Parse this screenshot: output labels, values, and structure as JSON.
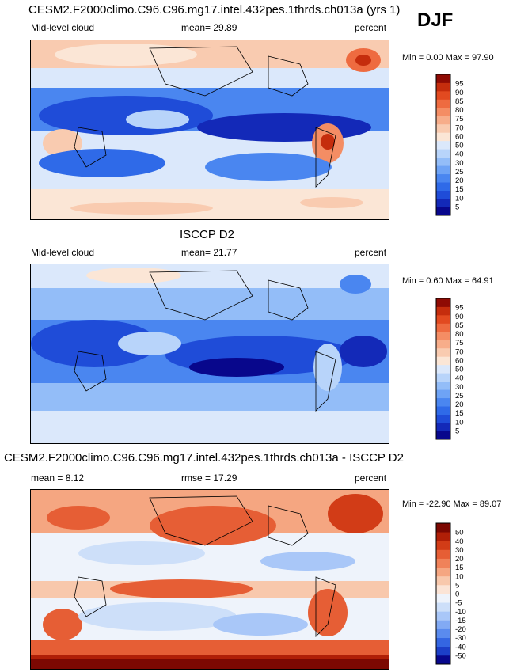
{
  "season": "DJF",
  "colors": {
    "seq": [
      "#08078c",
      "#1329b8",
      "#1f4cd8",
      "#2f6ae8",
      "#4a86f0",
      "#6ea3f5",
      "#93bdf8",
      "#b8d4fa",
      "#dbe8fb",
      "#fbe6d6",
      "#f9cbb0",
      "#f7ad8a",
      "#f48d64",
      "#ee6b40",
      "#e24a20",
      "#c52d0d",
      "#8f0b04"
    ],
    "diff": [
      "#08078c",
      "#1c3fc8",
      "#3466e2",
      "#5a8bee",
      "#82aaf4",
      "#a9c7f8",
      "#cddff9",
      "#eef3fb",
      "#fbe4d6",
      "#f8c8ac",
      "#f5a681",
      "#f08259",
      "#e65e35",
      "#d23c17",
      "#b01f07",
      "#7c0802"
    ]
  },
  "panels": [
    {
      "title": "CESM2.F2000climo.C96.C96.mg17.intel.432pes.1thrds.ch013a (yrs 1)",
      "left_label": "Mid-level cloud",
      "mean_text": "mean=  29.89",
      "right_label": "percent",
      "minmax": "Min =   0.00 Max =  97.90",
      "chart_data": {
        "type": "heatmap",
        "title": "CESM2.F2000climo.C96.C96.mg17.intel.432pes.1thrds.ch013a (yrs 1)",
        "variable": "Mid-level cloud",
        "units": "percent",
        "mean": 29.89,
        "min": 0.0,
        "max": 97.9,
        "colorbar_levels": [
          5,
          10,
          15,
          20,
          25,
          30,
          40,
          50,
          60,
          70,
          75,
          80,
          85,
          90,
          95
        ],
        "colorbar_labels": [
          "95",
          "90",
          "85",
          "80",
          "75",
          "70",
          "60",
          "50",
          "40",
          "30",
          "25",
          "20",
          "15",
          "10",
          "5"
        ]
      }
    },
    {
      "title": "ISCCP D2",
      "left_label": "Mid-level cloud",
      "mean_text": "mean=  21.77",
      "right_label": "percent",
      "minmax": "Min =   0.60 Max =  64.91",
      "chart_data": {
        "type": "heatmap",
        "title": "ISCCP D2",
        "variable": "Mid-level cloud",
        "units": "percent",
        "mean": 21.77,
        "min": 0.6,
        "max": 64.91,
        "colorbar_levels": [
          5,
          10,
          15,
          20,
          25,
          30,
          40,
          50,
          60,
          70,
          75,
          80,
          85,
          90,
          95
        ],
        "colorbar_labels": [
          "95",
          "90",
          "85",
          "80",
          "75",
          "70",
          "60",
          "50",
          "40",
          "30",
          "25",
          "20",
          "15",
          "10",
          "5"
        ]
      }
    },
    {
      "title": "CESM2.F2000climo.C96.C96.mg17.intel.432pes.1thrds.ch013a - ISCCP D2",
      "left_label": "mean =   8.12",
      "mean_text": "rmse =  17.29",
      "right_label": "percent",
      "minmax": "Min = -22.90 Max =  89.07",
      "chart_data": {
        "type": "heatmap",
        "title": "CESM2.F2000climo.C96.C96.mg17.intel.432pes.1thrds.ch013a - ISCCP D2",
        "units": "percent",
        "mean": 8.12,
        "rmse": 17.29,
        "min": -22.9,
        "max": 89.07,
        "colorbar_levels": [
          -50,
          -40,
          -30,
          -20,
          -15,
          -10,
          -5,
          0,
          5,
          10,
          15,
          20,
          30,
          40,
          50
        ],
        "colorbar_labels": [
          "50",
          "40",
          "30",
          "20",
          "15",
          "10",
          "5",
          "0",
          "-5",
          "-10",
          "-15",
          "-20",
          "-30",
          "-40",
          "-50"
        ]
      }
    }
  ]
}
